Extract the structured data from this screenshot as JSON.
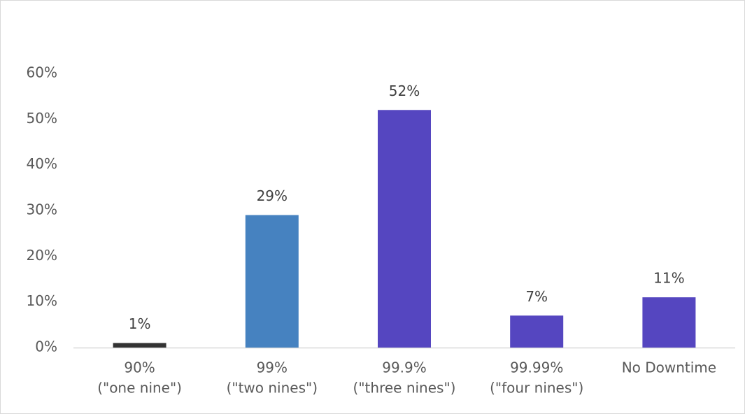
{
  "chart_data": {
    "type": "bar",
    "categories": [
      [
        "90%",
        "(\"one nine\")"
      ],
      [
        "99%",
        "(\"two nines\")"
      ],
      [
        "99.9%",
        "(\"three nines\")"
      ],
      [
        "99.99%",
        "(\"four nines\")"
      ],
      [
        "No Downtime"
      ]
    ],
    "values": [
      1,
      29,
      52,
      7,
      11
    ],
    "value_labels": [
      "1%",
      "29%",
      "52%",
      "7%",
      "11%"
    ],
    "colors": [
      "#333333",
      "#4682c0",
      "#5546c0",
      "#5546c0",
      "#5546c0"
    ],
    "ylim": [
      0,
      60
    ],
    "yticks": [
      {
        "value": 0,
        "label": "0%"
      },
      {
        "value": 10,
        "label": "10%"
      },
      {
        "value": 20,
        "label": "20%"
      },
      {
        "value": 30,
        "label": "30%"
      },
      {
        "value": 40,
        "label": "40%"
      },
      {
        "value": 50,
        "label": "50%"
      },
      {
        "value": 60,
        "label": "60%"
      }
    ],
    "grid": false
  }
}
